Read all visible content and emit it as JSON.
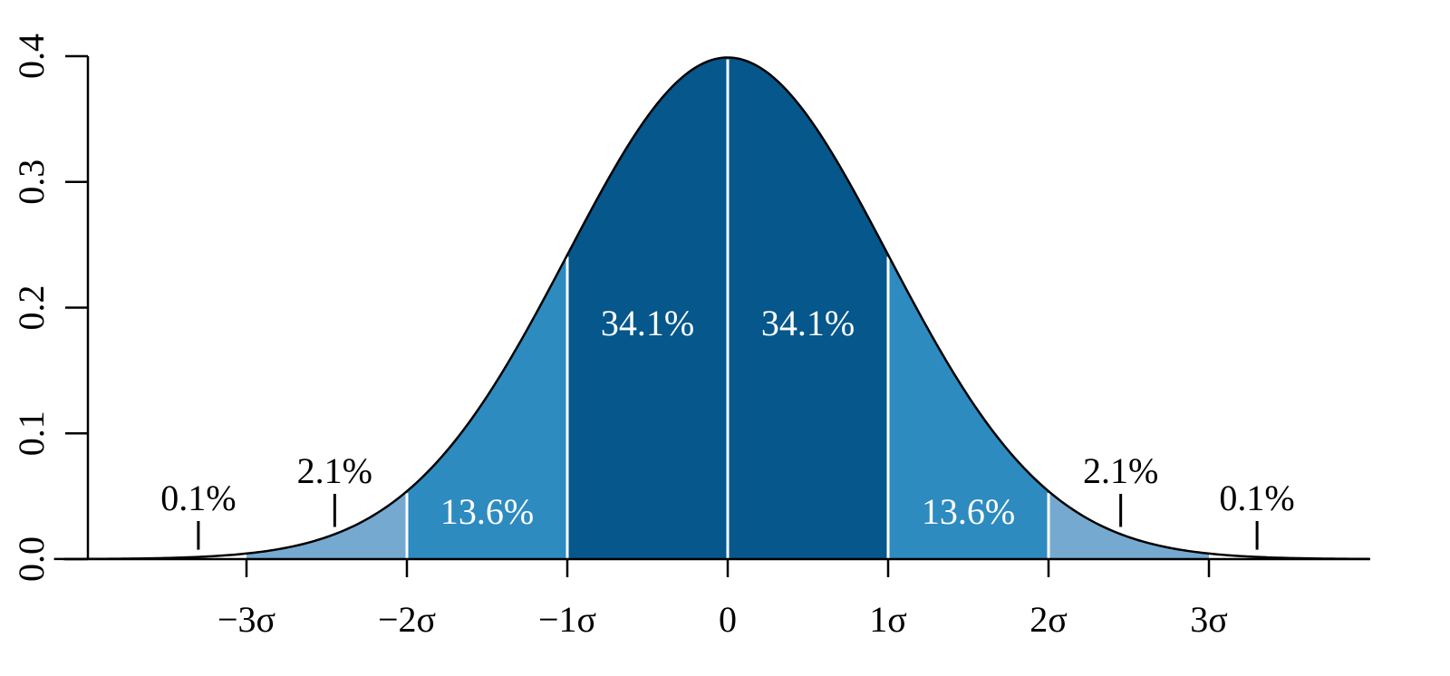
{
  "chart_data": {
    "type": "area",
    "title": "",
    "xlabel": "",
    "ylabel": "",
    "curve": "standard normal density",
    "xlim": [
      -4,
      4
    ],
    "ylim": [
      0,
      0.4
    ],
    "grid": false,
    "legend": "none",
    "x_ticks": [
      {
        "value": -3,
        "label": "−3σ"
      },
      {
        "value": -2,
        "label": "−2σ"
      },
      {
        "value": -1,
        "label": "−1σ"
      },
      {
        "value": 0,
        "label": "0"
      },
      {
        "value": 1,
        "label": "1σ"
      },
      {
        "value": 2,
        "label": "2σ"
      },
      {
        "value": 3,
        "label": "3σ"
      }
    ],
    "y_ticks": [
      {
        "value": 0.0,
        "label": "0.0"
      },
      {
        "value": 0.1,
        "label": "0.1"
      },
      {
        "value": 0.2,
        "label": "0.2"
      },
      {
        "value": 0.3,
        "label": "0.3"
      },
      {
        "value": 0.4,
        "label": "0.4"
      }
    ],
    "bands": [
      {
        "from": -4,
        "to": -3,
        "label": "0.1%",
        "pointer_x": -3.3,
        "color": "#ffffff"
      },
      {
        "from": -3,
        "to": -2,
        "label": "2.1%",
        "pointer_x": -2.45,
        "color": "#75a9d0"
      },
      {
        "from": -2,
        "to": -1,
        "label": "13.6%",
        "pointer_x": null,
        "color": "#2d8bbf"
      },
      {
        "from": -1,
        "to": 0,
        "label": "34.1%",
        "pointer_x": null,
        "color": "#06578b"
      },
      {
        "from": 0,
        "to": 1,
        "label": "34.1%",
        "pointer_x": null,
        "color": "#06578b"
      },
      {
        "from": 1,
        "to": 2,
        "label": "13.6%",
        "pointer_x": null,
        "color": "#2d8bbf"
      },
      {
        "from": 2,
        "to": 3,
        "label": "2.1%",
        "pointer_x": 2.45,
        "color": "#75a9d0"
      },
      {
        "from": 3,
        "to": 4,
        "label": "0.1%",
        "pointer_x": 3.3,
        "color": "#ffffff"
      }
    ]
  }
}
